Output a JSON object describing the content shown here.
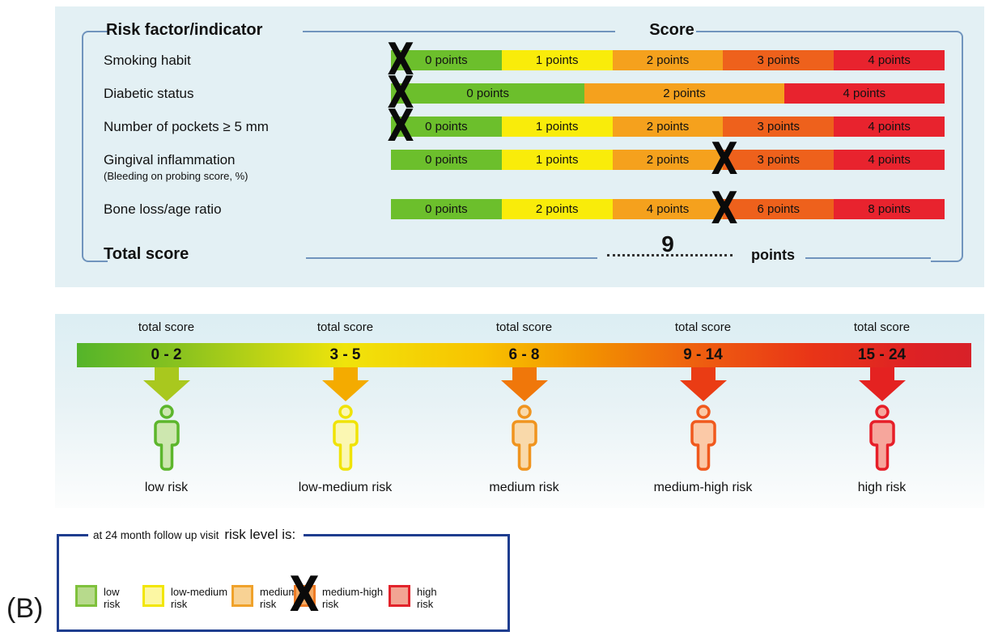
{
  "figure_label": "(B)",
  "marks": {
    "glyph": "X"
  },
  "colors": {
    "green": "#6cbf2c",
    "yellow": "#f9ec0a",
    "orange": "#f5a11d",
    "darkorange": "#ee611c",
    "red": "#e8232e",
    "panel_blue": "#e3f0f4",
    "line_blue": "#7094bd",
    "legend_border": "#1e3d8f"
  },
  "score_panel": {
    "header_left": "Risk factor/indicator",
    "header_right": "Score",
    "rows": [
      {
        "label": "Smoking habit",
        "sublabel": "",
        "mark": 0,
        "segments": [
          {
            "text": "0 points",
            "color": "green",
            "w": 1
          },
          {
            "text": "1 points",
            "color": "yellow",
            "w": 1
          },
          {
            "text": "2 points",
            "color": "orange",
            "w": 1
          },
          {
            "text": "3 points",
            "color": "darkorange",
            "w": 1
          },
          {
            "text": "4 points",
            "color": "red",
            "w": 1
          }
        ]
      },
      {
        "label": "Diabetic status",
        "sublabel": "",
        "mark": 0,
        "segments": [
          {
            "text": "0 points",
            "color": "green",
            "w": 1.75
          },
          {
            "text": "2 points",
            "color": "orange",
            "w": 1.8
          },
          {
            "text": "4 points",
            "color": "red",
            "w": 1.45
          }
        ]
      },
      {
        "label": "Number of pockets ≥ 5 mm",
        "sublabel": "",
        "mark": 0,
        "segments": [
          {
            "text": "0 points",
            "color": "green",
            "w": 1
          },
          {
            "text": "1 points",
            "color": "yellow",
            "w": 1
          },
          {
            "text": "2 points",
            "color": "orange",
            "w": 1
          },
          {
            "text": "3 points",
            "color": "darkorange",
            "w": 1
          },
          {
            "text": "4 points",
            "color": "red",
            "w": 1
          }
        ]
      },
      {
        "label": "Gingival inflammation",
        "sublabel": "(Bleeding on probing score, %)",
        "mark": 3,
        "segments": [
          {
            "text": "0 points",
            "color": "green",
            "w": 1
          },
          {
            "text": "1 points",
            "color": "yellow",
            "w": 1
          },
          {
            "text": "2 points",
            "color": "orange",
            "w": 1
          },
          {
            "text": "3 points",
            "color": "darkorange",
            "w": 1
          },
          {
            "text": "4 points",
            "color": "red",
            "w": 1
          }
        ]
      },
      {
        "label": "Bone loss/age ratio",
        "sublabel": "",
        "mark": 3,
        "segments": [
          {
            "text": "0 points",
            "color": "green",
            "w": 1
          },
          {
            "text": "2 points",
            "color": "yellow",
            "w": 1
          },
          {
            "text": "4 points",
            "color": "orange",
            "w": 1
          },
          {
            "text": "6 points",
            "color": "darkorange",
            "w": 1
          },
          {
            "text": "8 points",
            "color": "red",
            "w": 1
          }
        ]
      }
    ],
    "total": {
      "label": "Total score",
      "value": "9",
      "unit": "points"
    }
  },
  "risk_scale": {
    "band_label": "total score",
    "bands": [
      {
        "range": "0 - 2",
        "risk": "low risk",
        "arrow": "#a9c81e",
        "person_stroke": "#5cb62c",
        "person_fill": "#cde7af"
      },
      {
        "range": "3 - 5",
        "risk": "low-medium risk",
        "arrow": "#f4ab00",
        "person_stroke": "#f0e305",
        "person_fill": "#fbf7b2"
      },
      {
        "range": "6 - 8",
        "risk": "medium risk",
        "arrow": "#f0770a",
        "person_stroke": "#f0941e",
        "person_fill": "#f9d9aa"
      },
      {
        "range": "9 - 14",
        "risk": "medium-high risk",
        "arrow": "#ea3c14",
        "person_stroke": "#f0591d",
        "person_fill": "#fbc9a7"
      },
      {
        "range": "15 - 24",
        "risk": "high risk",
        "arrow": "#e42221",
        "person_stroke": "#e61e28",
        "person_fill": "#f6a69c"
      }
    ]
  },
  "legend": {
    "title_small": "at 24 month follow up visit",
    "title_large": "risk level is:",
    "items": [
      {
        "line1": "low",
        "line2": "risk",
        "fill": "#b7da8c",
        "border": "#7fc13c",
        "marked": false
      },
      {
        "line1": "low-medium",
        "line2": "risk",
        "fill": "#fcf7a3",
        "border": "#f2e603",
        "marked": false
      },
      {
        "line1": "medium",
        "line2": "risk",
        "fill": "#f8d294",
        "border": "#f0a22b",
        "marked": false
      },
      {
        "line1": "medium-high",
        "line2": "risk",
        "fill": "#f5aa63",
        "border": "#ef7b24",
        "marked": true
      },
      {
        "line1": "high",
        "line2": "risk",
        "fill": "#f2a493",
        "border": "#e2232b",
        "marked": false
      }
    ]
  }
}
